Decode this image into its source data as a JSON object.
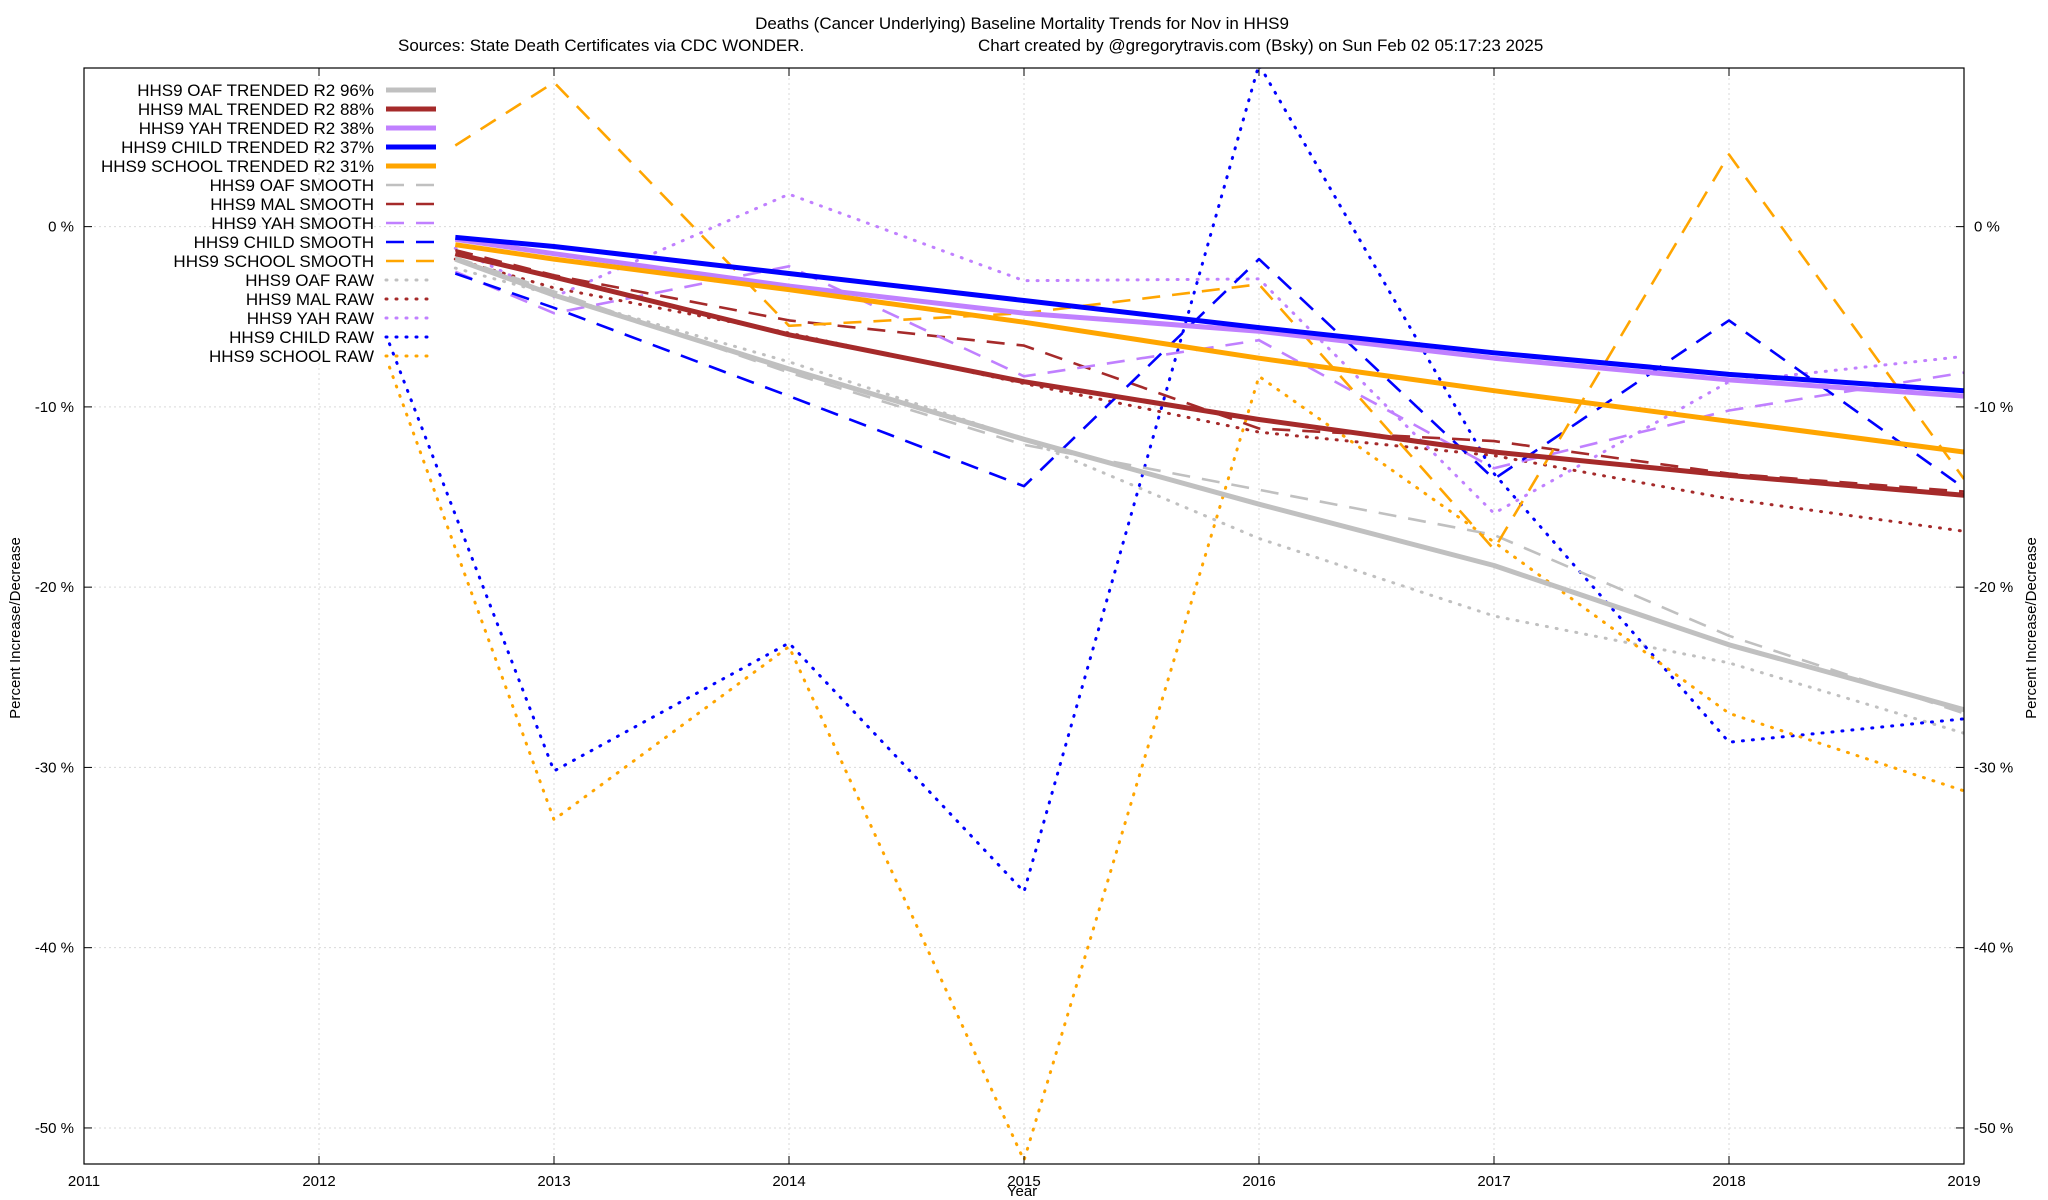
{
  "chart_data": {
    "type": "line",
    "title": "Deaths (Cancer Underlying)  Baseline Mortality Trends for Nov in HHS9",
    "subtitle_left": "Sources: State Death Certificates via CDC WONDER.",
    "subtitle_right": "Chart created by @gregorytravis.com (Bsky) on Sun Feb 02 05:17:23 2025",
    "xlabel": "Year",
    "ylabel_left": "Percent Increase/Decrease",
    "ylabel_right": "Percent Increase/Decrease",
    "xlim": [
      2011,
      2019
    ],
    "ylim": [
      -52,
      8.8
    ],
    "x_ticks": [
      2011,
      2012,
      2013,
      2014,
      2015,
      2016,
      2017,
      2018,
      2019
    ],
    "x_tick_labels": [
      "2011",
      "2012",
      "2013",
      "2014",
      "2015",
      "2016",
      "2017",
      "2018",
      "2019"
    ],
    "y_ticks": [
      0,
      -10,
      -20,
      -30,
      -40,
      -50
    ],
    "y_tick_labels": [
      "0 %",
      "-10 %",
      "-20 %",
      "-30 %",
      "-40 %",
      "-50 %"
    ],
    "grid": true,
    "legend_position": "top-left",
    "series": [
      {
        "name": "HHS9 OAF TRENDED R2  96%",
        "style": "trend",
        "color": "#c0c0c0",
        "x": [
          2012.58,
          2013,
          2014,
          2015,
          2016,
          2017,
          2018,
          2019
        ],
        "y": [
          -1.8,
          -3.8,
          -7.9,
          -11.8,
          -15.4,
          -18.8,
          -23.2,
          -26.8
        ]
      },
      {
        "name": "HHS9 MAL TRENDED R2  88%",
        "style": "trend",
        "color": "#a52a2a",
        "x": [
          2012.58,
          2013,
          2014,
          2015,
          2016,
          2017,
          2018,
          2019
        ],
        "y": [
          -1.5,
          -2.8,
          -6.0,
          -8.6,
          -10.7,
          -12.5,
          -13.8,
          -14.9
        ]
      },
      {
        "name": "HHS9 YAH TRENDED R2  38%",
        "style": "trend",
        "color": "#c080ff",
        "x": [
          2012.58,
          2013,
          2014,
          2015,
          2016,
          2017,
          2018,
          2019
        ],
        "y": [
          -0.7,
          -1.5,
          -3.3,
          -4.8,
          -5.8,
          -7.3,
          -8.5,
          -9.4
        ]
      },
      {
        "name": "HHS9 CHILD TRENDED R2  37%",
        "style": "trend",
        "color": "#0000ff",
        "x": [
          2012.58,
          2013,
          2014,
          2015,
          2016,
          2017,
          2018,
          2019
        ],
        "y": [
          -0.6,
          -1.1,
          -2.6,
          -4.1,
          -5.6,
          -7.0,
          -8.2,
          -9.1
        ]
      },
      {
        "name": "HHS9 SCHOOL TRENDED R2  31%",
        "style": "trend",
        "color": "#ffa500",
        "x": [
          2012.58,
          2013,
          2014,
          2015,
          2016,
          2017,
          2018,
          2019
        ],
        "y": [
          -1.0,
          -1.8,
          -3.5,
          -5.3,
          -7.3,
          -9.1,
          -10.8,
          -12.5
        ]
      },
      {
        "name": "HHS9 OAF SMOOTH",
        "style": "smooth",
        "color": "#c0c0c0",
        "x": [
          2012.58,
          2013,
          2014,
          2015,
          2016,
          2017,
          2018,
          2019
        ],
        "y": [
          -1.7,
          -3.6,
          -8.1,
          -12.1,
          -14.6,
          -17.1,
          -22.7,
          -27.0
        ]
      },
      {
        "name": "HHS9 MAL SMOOTH",
        "style": "smooth",
        "color": "#a52a2a",
        "x": [
          2012.58,
          2013,
          2014,
          2015,
          2016,
          2017,
          2018,
          2019
        ],
        "y": [
          -1.3,
          -2.7,
          -5.2,
          -6.6,
          -11.2,
          -11.9,
          -13.7,
          -14.7
        ]
      },
      {
        "name": "HHS9 YAH SMOOTH",
        "style": "smooth",
        "color": "#c080ff",
        "x": [
          2012.58,
          2013,
          2014,
          2015,
          2016,
          2017,
          2018,
          2019
        ],
        "y": [
          -2.5,
          -4.8,
          -2.2,
          -8.3,
          -6.3,
          -13.4,
          -10.2,
          -8.1
        ]
      },
      {
        "name": "HHS9 CHILD SMOOTH",
        "style": "smooth",
        "color": "#0000ff",
        "x": [
          2012.58,
          2013,
          2014,
          2015,
          2016,
          2017,
          2018,
          2019
        ],
        "y": [
          -2.6,
          -4.5,
          -9.4,
          -14.4,
          -1.8,
          -14.0,
          -5.2,
          -14.5
        ]
      },
      {
        "name": "HHS9 SCHOOL SMOOTH",
        "style": "smooth",
        "color": "#ffa500",
        "x": [
          2012.58,
          2013,
          2014,
          2015,
          2016,
          2017,
          2018,
          2019
        ],
        "y": [
          4.5,
          8.0,
          -5.5,
          -4.8,
          -3.2,
          -17.9,
          4.0,
          -14.0
        ]
      },
      {
        "name": "HHS9 OAF RAW",
        "style": "raw",
        "color": "#c0c0c0",
        "x": [
          2012.58,
          2013,
          2014,
          2015,
          2016,
          2017,
          2018,
          2019
        ],
        "y": [
          -2.3,
          -3.8,
          -7.5,
          -11.8,
          -17.3,
          -21.6,
          -24.2,
          -28.1
        ]
      },
      {
        "name": "HHS9 MAL RAW",
        "style": "raw",
        "color": "#a52a2a",
        "x": [
          2012.58,
          2013,
          2014,
          2015,
          2016,
          2017,
          2018,
          2019
        ],
        "y": [
          -1.8,
          -3.4,
          -5.9,
          -8.7,
          -11.4,
          -12.7,
          -15.1,
          -16.9
        ]
      },
      {
        "name": "HHS9 YAH RAW",
        "style": "raw",
        "color": "#c080ff",
        "x": [
          2012.58,
          2013,
          2014,
          2015,
          2016,
          2017,
          2018,
          2019
        ],
        "y": [
          -1.2,
          -3.9,
          1.8,
          -3.0,
          -2.9,
          -15.9,
          -8.6,
          -7.2
        ]
      },
      {
        "name": "HHS9 CHILD RAW",
        "style": "raw",
        "color": "#0000ff",
        "x": [
          2012.3,
          2013,
          2014,
          2015,
          2016,
          2017,
          2018,
          2019
        ],
        "y": [
          -6.5,
          -30.2,
          -23.1,
          -36.9,
          9.0,
          -13.7,
          -28.6,
          -27.3
        ]
      },
      {
        "name": "HHS9 SCHOOL RAW",
        "style": "raw",
        "color": "#ffa500",
        "x": [
          2012.3,
          2013,
          2014,
          2015,
          2016,
          2017,
          2018,
          2019
        ],
        "y": [
          -7.8,
          -32.9,
          -23.3,
          -51.8,
          -8.3,
          -17.5,
          -27.0,
          -31.3
        ]
      }
    ]
  }
}
